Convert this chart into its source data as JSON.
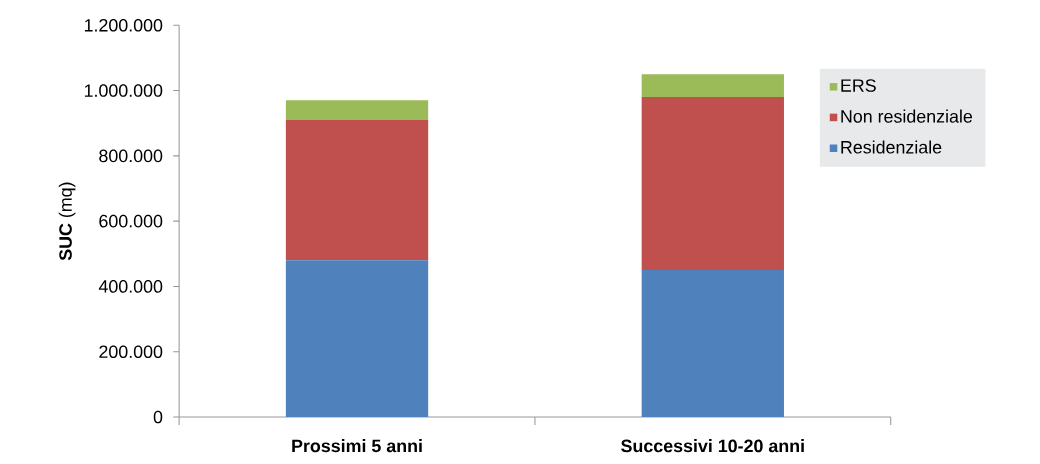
{
  "chart_data": {
    "type": "bar",
    "stacked": true,
    "ylabel": "**SUC** (mq)",
    "categories": [
      "Prossimi 5 anni",
      "Successivi 10-20 anni"
    ],
    "series": [
      {
        "name": "Residenziale",
        "color": "#4f81bd",
        "values": [
          480000,
          450000
        ]
      },
      {
        "name": "Non residenziale",
        "color": "#c0504d",
        "values": [
          430000,
          530000
        ]
      },
      {
        "name": "ERS",
        "color": "#9bbb59",
        "values": [
          60000,
          70000
        ]
      }
    ],
    "ylim": [
      0,
      1200000
    ],
    "yticks": [
      0,
      {
        "value": 200000,
        "label": "200.000"
      },
      {
        "value": 400000,
        "label": "400.000"
      },
      {
        "value": 600000,
        "label": "600.000"
      },
      {
        "value": 800000,
        "label": "800.000"
      },
      {
        "value": 1000000,
        "label": "1.000.000"
      },
      {
        "value": 1200000,
        "label": "1.200.000"
      }
    ],
    "grid": false,
    "legend": "right"
  }
}
